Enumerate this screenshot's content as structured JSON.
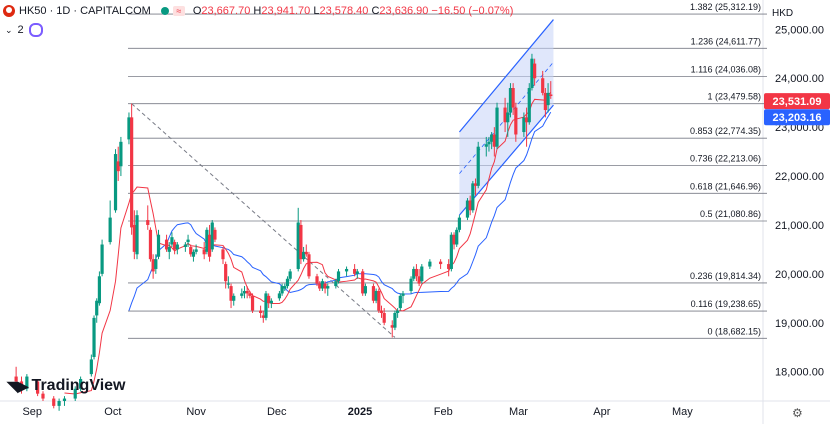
{
  "header": {
    "symbol": "HK50 · 1D · CAPITALCOM",
    "open_label": "O",
    "open": "23,667.70",
    "high_label": "H",
    "high": "23,941.70",
    "low_label": "L",
    "low": "23,578.40",
    "close_label": "C",
    "close": "23,636.90",
    "change": "−16.50 (−0.07%)",
    "indicator_count": "2",
    "currency": "HKD"
  },
  "logo_text": "TradingView",
  "colors": {
    "up": "#089981",
    "down": "#f23645",
    "ma_fast": "#f23645",
    "ma_slow": "#2962ff",
    "channel_fill": "#c7d4f7",
    "price_tag": "#2962ff",
    "price_tag_red": "#f23645"
  },
  "icons": [
    "flag-icon",
    "green-dot-icon",
    "wave-icon",
    "layers-icon",
    "settings-gear-icon"
  ],
  "chart_data": {
    "type": "candlestick",
    "symbol": "HK50",
    "interval": "1D",
    "y_axis": {
      "min": 17400,
      "max": 25600,
      "ticks": [
        18000,
        19000,
        20000,
        21000,
        22000,
        23000,
        24000,
        25000
      ],
      "tick_labels": [
        "18,000.00",
        "19,000.00",
        "20,000.00",
        "21,000.00",
        "22,000.00",
        "23,000.00",
        "24,000.00",
        "25,000.00"
      ]
    },
    "x_axis": {
      "labels": [
        "Sep",
        "Oct",
        "Nov",
        "Dec",
        "2025",
        "Feb",
        "Mar",
        "Apr",
        "May"
      ],
      "dates": [
        "2024-09-01",
        "2024-10-01",
        "2024-11-01",
        "2024-12-01",
        "2025-01-01",
        "2025-02-01",
        "2025-03-01",
        "2025-04-01",
        "2025-05-01"
      ],
      "range": [
        "2024-08-20",
        "2025-05-31"
      ]
    },
    "fibonacci": [
      {
        "ratio": "0",
        "price": 18682.15,
        "label": "0 (18,682.15)"
      },
      {
        "ratio": "0.116",
        "price": 19238.65,
        "label": "0.116 (19,238.65)"
      },
      {
        "ratio": "0.236",
        "price": 19814.34,
        "label": "0.236 (19,814.34)"
      },
      {
        "ratio": "0.5",
        "price": 21080.86,
        "label": "0.5 (21,080.86)"
      },
      {
        "ratio": "0.618",
        "price": 21646.96,
        "label": "0.618 (21,646.96)"
      },
      {
        "ratio": "0.736",
        "price": 22213.06,
        "label": "0.736 (22,213.06)"
      },
      {
        "ratio": "0.853",
        "price": 22774.35,
        "label": "0.853 (22,774.35)"
      },
      {
        "ratio": "1",
        "price": 23479.58,
        "label": "1 (23,479.58)"
      },
      {
        "ratio": "1.116",
        "price": 24036.08,
        "label": "1.116 (24,036.08)"
      },
      {
        "ratio": "1.236",
        "price": 24611.77,
        "label": "1.236 (24,611.77)"
      },
      {
        "ratio": "1.382",
        "price": 25312.19,
        "label": "1.382 (25,312.19)"
      }
    ],
    "fib_range_dates": [
      "2024-10-08",
      "2025-01-30"
    ],
    "price_tags": [
      {
        "value": 23531.09,
        "label": "23,531.09",
        "color": "#f23645"
      },
      {
        "value": 23203.16,
        "label": "23,203.16",
        "color": "#2962ff"
      }
    ],
    "trend_line": {
      "from": [
        "2024-10-08",
        23480
      ],
      "to": [
        "2025-01-14",
        18700
      ]
    },
    "channel": {
      "upper": [
        [
          "2025-02-07",
          22900
        ],
        [
          "2025-03-14",
          25200
        ]
      ],
      "lower": [
        [
          "2025-02-07",
          21200
        ],
        [
          "2025-03-14",
          23450
        ]
      ],
      "mid": [
        [
          "2025-02-07",
          22050
        ],
        [
          "2025-03-14",
          24330
        ]
      ]
    },
    "candles": [
      [
        "2024-08-26",
        17900,
        18100,
        17650,
        17800
      ],
      [
        "2024-08-28",
        17800,
        17900,
        17550,
        17650
      ],
      [
        "2024-08-30",
        17650,
        17950,
        17600,
        17900
      ],
      [
        "2024-09-03",
        17800,
        17850,
        17500,
        17550
      ],
      [
        "2024-09-05",
        17550,
        17600,
        17400,
        17450
      ],
      [
        "2024-09-09",
        17450,
        17500,
        17250,
        17300
      ],
      [
        "2024-09-11",
        17300,
        17450,
        17200,
        17400
      ],
      [
        "2024-09-13",
        17400,
        17500,
        17300,
        17450
      ],
      [
        "2024-09-17",
        17450,
        17700,
        17400,
        17650
      ],
      [
        "2024-09-19",
        17650,
        17900,
        17600,
        17850
      ],
      [
        "2024-09-23",
        17950,
        18350,
        17900,
        18250
      ],
      [
        "2024-09-24",
        18300,
        19150,
        18250,
        19100
      ],
      [
        "2024-09-25",
        19150,
        19500,
        19000,
        19450
      ],
      [
        "2024-09-26",
        19400,
        20050,
        19350,
        19950
      ],
      [
        "2024-09-27",
        20000,
        20700,
        19950,
        20600
      ],
      [
        "2024-09-30",
        20650,
        21500,
        20600,
        21150
      ],
      [
        "2024-10-02",
        21300,
        22550,
        21250,
        22450
      ],
      [
        "2024-10-03",
        22300,
        22600,
        21900,
        22100
      ],
      [
        "2024-10-04",
        22200,
        22800,
        22000,
        22700
      ],
      [
        "2024-10-07",
        22750,
        23300,
        22650,
        23200
      ],
      [
        "2024-10-08",
        23200,
        23480,
        20800,
        20950
      ],
      [
        "2024-10-09",
        21000,
        21300,
        20300,
        20450
      ],
      [
        "2024-10-10",
        20400,
        21300,
        20300,
        21200
      ],
      [
        "2024-10-14",
        21100,
        21400,
        20900,
        21000
      ],
      [
        "2024-10-15",
        20900,
        20950,
        20250,
        20300
      ],
      [
        "2024-10-16",
        20300,
        20400,
        19900,
        20050
      ],
      [
        "2024-10-17",
        20100,
        20400,
        20000,
        20300
      ],
      [
        "2024-10-18",
        20350,
        20900,
        20300,
        20800
      ],
      [
        "2024-10-21",
        20700,
        20800,
        20450,
        20500
      ],
      [
        "2024-10-22",
        20450,
        20650,
        20300,
        20550
      ],
      [
        "2024-10-23",
        20600,
        20850,
        20550,
        20750
      ],
      [
        "2024-10-24",
        20650,
        20700,
        20400,
        20500
      ],
      [
        "2024-10-25",
        20500,
        20650,
        20400,
        20600
      ],
      [
        "2024-10-28",
        20550,
        20650,
        20450,
        20600
      ],
      [
        "2024-10-29",
        20650,
        20800,
        20550,
        20700
      ],
      [
        "2024-10-30",
        20550,
        20600,
        20350,
        20400
      ],
      [
        "2024-10-31",
        20350,
        20500,
        20250,
        20450
      ],
      [
        "2024-11-01",
        20450,
        20600,
        20400,
        20500
      ],
      [
        "2024-11-04",
        20500,
        20650,
        20300,
        20400
      ],
      [
        "2024-11-05",
        20450,
        20950,
        20400,
        20900
      ],
      [
        "2024-11-06",
        20800,
        21000,
        20250,
        20350
      ],
      [
        "2024-11-07",
        20500,
        21100,
        20450,
        21050
      ],
      [
        "2024-11-08",
        20900,
        20950,
        20650,
        20700
      ],
      [
        "2024-11-11",
        20500,
        20550,
        20200,
        20300
      ],
      [
        "2024-11-12",
        20200,
        20250,
        19700,
        19850
      ],
      [
        "2024-11-13",
        19800,
        19950,
        19700,
        19800
      ],
      [
        "2024-11-14",
        19750,
        19800,
        19300,
        19450
      ],
      [
        "2024-11-15",
        19450,
        19600,
        19350,
        19550
      ],
      [
        "2024-11-18",
        19550,
        19700,
        19500,
        19600
      ],
      [
        "2024-11-19",
        19600,
        19750,
        19500,
        19650
      ],
      [
        "2024-11-20",
        19650,
        19750,
        19500,
        19600
      ],
      [
        "2024-11-21",
        19600,
        19650,
        19500,
        19550
      ],
      [
        "2024-11-22",
        19550,
        19600,
        19200,
        19250
      ],
      [
        "2024-11-25",
        19250,
        19350,
        19100,
        19200
      ],
      [
        "2024-11-26",
        19150,
        19250,
        19000,
        19100
      ],
      [
        "2024-11-27",
        19100,
        19650,
        19050,
        19600
      ],
      [
        "2024-11-28",
        19550,
        19600,
        19300,
        19400
      ],
      [
        "2024-11-29",
        19400,
        19500,
        19300,
        19450
      ],
      [
        "2024-12-02",
        19500,
        19650,
        19450,
        19600
      ],
      [
        "2024-12-03",
        19600,
        19800,
        19550,
        19750
      ],
      [
        "2024-12-04",
        19700,
        19800,
        19650,
        19750
      ],
      [
        "2024-12-05",
        19750,
        19950,
        19700,
        19900
      ],
      [
        "2024-12-06",
        19900,
        20100,
        19850,
        20050
      ],
      [
        "2024-12-09",
        20100,
        21350,
        20050,
        21050
      ],
      [
        "2024-12-10",
        21000,
        21100,
        20200,
        20300
      ],
      [
        "2024-12-11",
        20300,
        20550,
        20250,
        20450
      ],
      [
        "2024-12-12",
        20450,
        20600,
        20350,
        20400
      ],
      [
        "2024-12-13",
        20400,
        20450,
        19900,
        19950
      ],
      [
        "2024-12-16",
        19950,
        20000,
        19750,
        19800
      ],
      [
        "2024-12-17",
        19800,
        19850,
        19650,
        19700
      ],
      [
        "2024-12-18",
        19700,
        19900,
        19650,
        19850
      ],
      [
        "2024-12-19",
        19800,
        19850,
        19600,
        19700
      ],
      [
        "2024-12-20",
        19700,
        19800,
        19550,
        19750
      ],
      [
        "2024-12-23",
        19750,
        19900,
        19700,
        19850
      ],
      [
        "2024-12-24",
        19850,
        20100,
        19800,
        20050
      ],
      [
        "2024-12-27",
        20050,
        20150,
        19950,
        20100
      ],
      [
        "2024-12-30",
        20100,
        20200,
        19950,
        20000
      ],
      [
        "2024-12-31",
        20000,
        20100,
        19900,
        20050
      ],
      [
        "2025-01-02",
        20050,
        20100,
        19550,
        19600
      ],
      [
        "2025-01-03",
        19600,
        19800,
        19550,
        19750
      ],
      [
        "2025-01-06",
        19750,
        19800,
        19400,
        19450
      ],
      [
        "2025-01-07",
        19450,
        19700,
        19400,
        19650
      ],
      [
        "2025-01-08",
        19650,
        19700,
        19200,
        19250
      ],
      [
        "2025-01-09",
        19250,
        19350,
        19100,
        19200
      ],
      [
        "2025-01-10",
        19200,
        19300,
        18950,
        19000
      ],
      [
        "2025-01-13",
        18950,
        19050,
        18700,
        18900
      ],
      [
        "2025-01-14",
        18900,
        19250,
        18850,
        19200
      ],
      [
        "2025-01-15",
        19200,
        19300,
        19100,
        19250
      ],
      [
        "2025-01-16",
        19300,
        19600,
        19250,
        19550
      ],
      [
        "2025-01-17",
        19550,
        19650,
        19400,
        19600
      ],
      [
        "2025-01-20",
        19650,
        19950,
        19600,
        19900
      ],
      [
        "2025-01-21",
        19900,
        20150,
        19850,
        20100
      ],
      [
        "2025-01-22",
        20100,
        20200,
        19850,
        19950
      ],
      [
        "2025-01-23",
        19950,
        20100,
        19750,
        19800
      ],
      [
        "2025-01-24",
        19850,
        20200,
        19800,
        20150
      ],
      [
        "2025-01-27",
        20150,
        20300,
        20100,
        20250
      ],
      [
        "2025-01-31",
        20250,
        20300,
        20100,
        20200
      ],
      [
        "2025-02-03",
        20200,
        20300,
        19950,
        20100
      ],
      [
        "2025-02-04",
        20100,
        20850,
        20050,
        20800
      ],
      [
        "2025-02-05",
        20800,
        20850,
        20500,
        20600
      ],
      [
        "2025-02-06",
        20600,
        20950,
        20550,
        20900
      ],
      [
        "2025-02-07",
        20900,
        21200,
        20850,
        21150
      ],
      [
        "2025-02-10",
        21150,
        21550,
        21100,
        21500
      ],
      [
        "2025-02-11",
        21500,
        21600,
        21200,
        21300
      ],
      [
        "2025-02-12",
        21300,
        21900,
        21250,
        21850
      ],
      [
        "2025-02-13",
        21850,
        21950,
        21600,
        21800
      ],
      [
        "2025-02-14",
        21800,
        22700,
        21750,
        22600
      ],
      [
        "2025-02-17",
        22600,
        22800,
        22400,
        22650
      ],
      [
        "2025-02-18",
        22650,
        22800,
        22500,
        22700
      ],
      [
        "2025-02-19",
        22700,
        22900,
        22550,
        22850
      ],
      [
        "2025-02-20",
        22850,
        23000,
        22400,
        22600
      ],
      [
        "2025-02-21",
        22600,
        23500,
        22550,
        23400
      ],
      [
        "2025-02-24",
        23400,
        23600,
        22900,
        23100
      ],
      [
        "2025-02-25",
        23100,
        23500,
        22800,
        23300
      ],
      [
        "2025-02-26",
        23300,
        23900,
        23200,
        23800
      ],
      [
        "2025-02-27",
        23800,
        23900,
        23250,
        23400
      ],
      [
        "2025-02-28",
        23400,
        23500,
        22700,
        22850
      ],
      [
        "2025-03-03",
        22900,
        23300,
        22800,
        23200
      ],
      [
        "2025-03-04",
        23200,
        23400,
        22600,
        23100
      ],
      [
        "2025-03-05",
        23100,
        23900,
        23050,
        23800
      ],
      [
        "2025-03-06",
        23800,
        24500,
        23750,
        24400
      ],
      [
        "2025-03-07",
        24300,
        24400,
        23850,
        24000
      ],
      [
        "2025-03-10",
        24000,
        24150,
        23650,
        23700
      ],
      [
        "2025-03-11",
        23700,
        23800,
        23200,
        23350
      ],
      [
        "2025-03-12",
        23450,
        23900,
        23300,
        23700
      ],
      [
        "2025-03-13",
        23667.7,
        23941.7,
        23578.4,
        23636.9
      ]
    ]
  }
}
